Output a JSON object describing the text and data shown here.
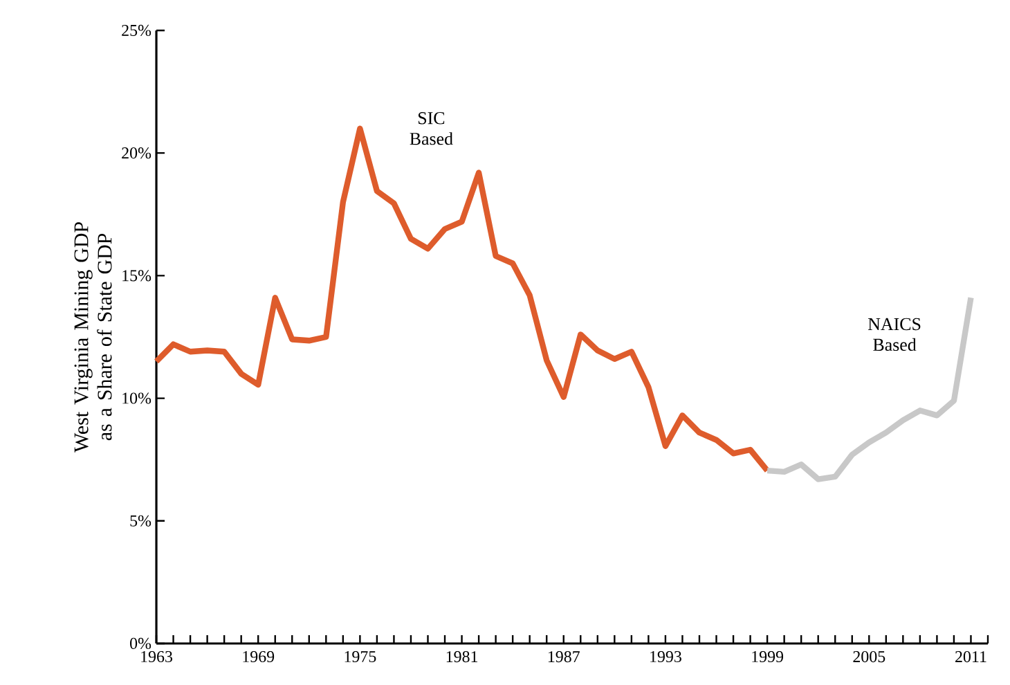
{
  "chart_data": {
    "type": "line",
    "ylabel": "West Virginia Mining GDP as a Share of State GDP",
    "xlim": [
      1963,
      2012
    ],
    "xticks": [
      {
        "value": 1963,
        "label": "1963"
      },
      {
        "value": 1964,
        "label": null
      },
      {
        "value": 1965,
        "label": null
      },
      {
        "value": 1966,
        "label": null
      },
      {
        "value": 1967,
        "label": null
      },
      {
        "value": 1968,
        "label": null
      },
      {
        "value": 1969,
        "label": "1969"
      },
      {
        "value": 1970,
        "label": null
      },
      {
        "value": 1971,
        "label": null
      },
      {
        "value": 1972,
        "label": null
      },
      {
        "value": 1973,
        "label": null
      },
      {
        "value": 1974,
        "label": null
      },
      {
        "value": 1975,
        "label": "1975"
      },
      {
        "value": 1976,
        "label": null
      },
      {
        "value": 1977,
        "label": null
      },
      {
        "value": 1978,
        "label": null
      },
      {
        "value": 1979,
        "label": null
      },
      {
        "value": 1980,
        "label": null
      },
      {
        "value": 1981,
        "label": "1981"
      },
      {
        "value": 1982,
        "label": null
      },
      {
        "value": 1983,
        "label": null
      },
      {
        "value": 1984,
        "label": null
      },
      {
        "value": 1985,
        "label": null
      },
      {
        "value": 1986,
        "label": null
      },
      {
        "value": 1987,
        "label": "1987"
      },
      {
        "value": 1988,
        "label": null
      },
      {
        "value": 1989,
        "label": null
      },
      {
        "value": 1990,
        "label": null
      },
      {
        "value": 1991,
        "label": null
      },
      {
        "value": 1992,
        "label": null
      },
      {
        "value": 1993,
        "label": "1993"
      },
      {
        "value": 1994,
        "label": null
      },
      {
        "value": 1995,
        "label": null
      },
      {
        "value": 1996,
        "label": null
      },
      {
        "value": 1997,
        "label": null
      },
      {
        "value": 1998,
        "label": null
      },
      {
        "value": 1999,
        "label": "1999"
      },
      {
        "value": 2000,
        "label": null
      },
      {
        "value": 2001,
        "label": null
      },
      {
        "value": 2002,
        "label": null
      },
      {
        "value": 2003,
        "label": null
      },
      {
        "value": 2004,
        "label": null
      },
      {
        "value": 2005,
        "label": "2005"
      },
      {
        "value": 2006,
        "label": null
      },
      {
        "value": 2007,
        "label": null
      },
      {
        "value": 2008,
        "label": null
      },
      {
        "value": 2009,
        "label": null
      },
      {
        "value": 2010,
        "label": null
      },
      {
        "value": 2011,
        "label": "2011"
      },
      {
        "value": 2012,
        "label": null
      }
    ],
    "ylim": [
      0,
      25
    ],
    "yticks": [
      {
        "value": 0,
        "label": "0%"
      },
      {
        "value": 5,
        "label": "5%"
      },
      {
        "value": 10,
        "label": "10%"
      },
      {
        "value": 15,
        "label": "15%"
      },
      {
        "value": 20,
        "label": "20%"
      },
      {
        "value": 25,
        "label": "25%"
      }
    ],
    "grid": false,
    "legend": false,
    "marker": "none",
    "line_style": "solid",
    "series": [
      {
        "name": "SIC Based",
        "color": "#de5c2c",
        "x": [
          1963,
          1964,
          1965,
          1966,
          1967,
          1968,
          1969,
          1970,
          1971,
          1972,
          1973,
          1974,
          1975,
          1976,
          1977,
          1978,
          1979,
          1980,
          1981,
          1982,
          1983,
          1984,
          1985,
          1986,
          1987,
          1988,
          1989,
          1990,
          1991,
          1992,
          1993,
          1994,
          1995,
          1996,
          1997,
          1998,
          1999
        ],
        "values": [
          11.5,
          12.2,
          11.9,
          11.95,
          11.9,
          11.0,
          10.55,
          14.1,
          12.4,
          12.35,
          12.5,
          18.0,
          21.0,
          18.45,
          17.95,
          16.5,
          16.1,
          16.9,
          17.2,
          19.2,
          15.8,
          15.5,
          14.2,
          11.55,
          10.05,
          12.6,
          11.95,
          11.6,
          11.9,
          10.45,
          8.05,
          9.3,
          8.6,
          8.3,
          7.75,
          7.9,
          7.05
        ]
      },
      {
        "name": "NAICS Based",
        "color": "#c8c8c8",
        "x": [
          1999,
          2000,
          2001,
          2002,
          2003,
          2004,
          2005,
          2006,
          2007,
          2008,
          2009,
          2010,
          2011
        ],
        "values": [
          7.05,
          7.0,
          7.3,
          6.7,
          6.8,
          7.7,
          8.2,
          8.6,
          9.1,
          9.5,
          9.3,
          9.9,
          14.1
        ]
      }
    ]
  }
}
